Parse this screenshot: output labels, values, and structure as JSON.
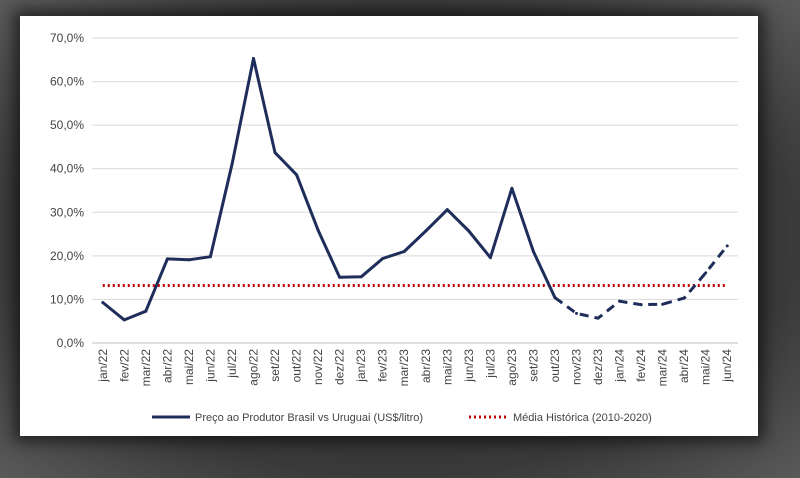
{
  "chart_data": {
    "type": "line",
    "title": "",
    "xlabel": "",
    "ylabel": "",
    "ylim": [
      0,
      70
    ],
    "yticks": [
      "0,0%",
      "10,0%",
      "20,0%",
      "30,0%",
      "40,0%",
      "50,0%",
      "60,0%",
      "70,0%"
    ],
    "ytick_values": [
      0,
      10,
      20,
      30,
      40,
      50,
      60,
      70
    ],
    "categories": [
      "jan/22",
      "fev/22",
      "mar/22",
      "abr/22",
      "mai/22",
      "jun/22",
      "jul/22",
      "ago/22",
      "set/22",
      "out/22",
      "nov/22",
      "dez/22",
      "jan/23",
      "fev/23",
      "mar/23",
      "abr/23",
      "mai/23",
      "jun/23",
      "jul/23",
      "ago/23",
      "set/23",
      "out/23",
      "nov/23",
      "dez/23",
      "jan/24",
      "fev/24",
      "mar/24",
      "abr/24",
      "mai/24",
      "jun/24"
    ],
    "series": [
      {
        "name": "Preço ao Produtor Brasil vs Uruguai (US$/litro)",
        "color": "#1f2d5a",
        "values": [
          9.3,
          5.3,
          7.3,
          19.3,
          19.1,
          19.8,
          41.0,
          65.3,
          43.7,
          38.6,
          25.9,
          15.1,
          15.2,
          19.4,
          21.0,
          25.7,
          30.6,
          25.7,
          19.6,
          35.5,
          21.0,
          10.4,
          6.8,
          5.7,
          9.6,
          8.8,
          8.9,
          10.3,
          16.1,
          22.3
        ],
        "dashed_from_index": 21
      },
      {
        "name": "Média Histórica (2010-2020)",
        "color": "#c00000",
        "constant": 13.2
      }
    ],
    "legend_position": "bottom",
    "grid": true
  }
}
